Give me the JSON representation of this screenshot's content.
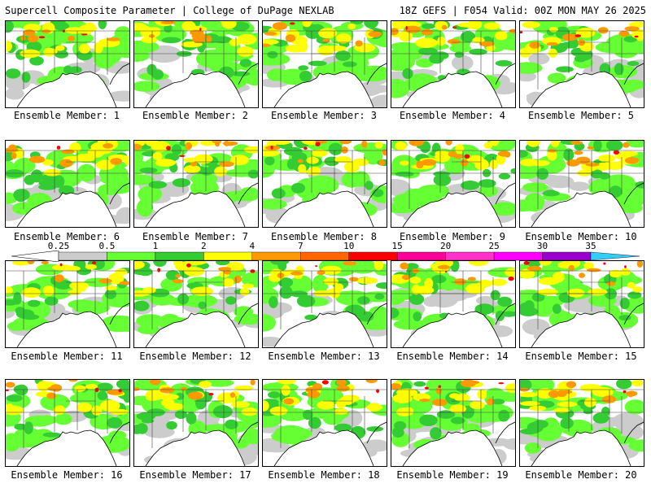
{
  "header": {
    "left": "Supercell Composite Parameter | College of DuPage NEXLAB",
    "right": "18Z GEFS | F054 Valid: 00Z MON MAY 26 2025"
  },
  "colorbar": {
    "ticks": [
      "0.25",
      "0.5",
      "1",
      "2",
      "4",
      "7",
      "10",
      "15",
      "20",
      "25",
      "30",
      "35"
    ],
    "colors": [
      "#cccccc",
      "#66ff33",
      "#33cc33",
      "#ffff00",
      "#ff9900",
      "#ff6600",
      "#ff0000",
      "#ff0099",
      "#ff33cc",
      "#ff00ff",
      "#9900cc",
      "#cc66ff",
      "#33ccff"
    ]
  },
  "members": [
    {
      "label": "Ensemble Member: 1"
    },
    {
      "label": "Ensemble Member: 2"
    },
    {
      "label": "Ensemble Member: 3"
    },
    {
      "label": "Ensemble Member: 4"
    },
    {
      "label": "Ensemble Member: 5"
    },
    {
      "label": "Ensemble Member: 6"
    },
    {
      "label": "Ensemble Member: 7"
    },
    {
      "label": "Ensemble Member: 8"
    },
    {
      "label": "Ensemble Member: 9"
    },
    {
      "label": "Ensemble Member: 10"
    },
    {
      "label": "Ensemble Member: 11"
    },
    {
      "label": "Ensemble Member: 12"
    },
    {
      "label": "Ensemble Member: 13"
    },
    {
      "label": "Ensemble Member: 14"
    },
    {
      "label": "Ensemble Member: 15"
    },
    {
      "label": "Ensemble Member: 16"
    },
    {
      "label": "Ensemble Member: 17"
    },
    {
      "label": "Ensemble Member: 18"
    },
    {
      "label": "Ensemble Member: 19"
    },
    {
      "label": "Ensemble Member: 20"
    }
  ]
}
